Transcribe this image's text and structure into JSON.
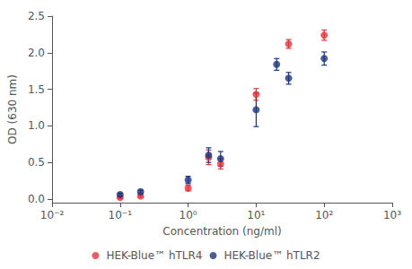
{
  "chart_data": {
    "type": "scatter",
    "xlabel": "Concentration (ng/ml)",
    "ylabel": "OD (630 nm)",
    "log": "x",
    "xlim": [
      0.01,
      1000
    ],
    "xticks": [
      {
        "value": 0.01,
        "label": "10⁻²"
      },
      {
        "value": 0.1,
        "label": "10⁻¹"
      },
      {
        "value": 1,
        "label": "10⁰"
      },
      {
        "value": 10,
        "label": "10¹"
      },
      {
        "value": 100,
        "label": "10²"
      },
      {
        "value": 1000,
        "label": "10³"
      }
    ],
    "ylim": [
      -0.05,
      2.5
    ],
    "yticks": [
      {
        "value": 0,
        "label": "0.0"
      },
      0.5,
      {
        "value": 1,
        "label": "1.0"
      },
      1.5,
      {
        "value": 2,
        "label": "2.0"
      },
      2.5
    ],
    "grid": false,
    "legend": "bottom",
    "marker": "circle",
    "series": [
      {
        "name": "HEK-Blue™ hTLR4",
        "color": "#E8323C",
        "x": [
          0.1,
          0.2,
          1.0,
          2.0,
          3.0,
          10.0,
          30.0,
          100.0
        ],
        "values": [
          0.02,
          0.04,
          0.15,
          0.57,
          0.48,
          1.43,
          2.12,
          2.24
        ],
        "yerr": [
          0.015,
          0.015,
          0.04,
          0.1,
          0.07,
          0.08,
          0.06,
          0.07
        ]
      },
      {
        "name": "HEK-Blue™ hTLR2",
        "color": "#1A3480",
        "x": [
          0.1,
          0.2,
          1.0,
          2.0,
          3.0,
          10.0,
          20.0,
          30.0,
          100.0
        ],
        "values": [
          0.06,
          0.1,
          0.26,
          0.6,
          0.55,
          1.22,
          1.84,
          1.65,
          1.92
        ],
        "yerr": [
          0.02,
          0.02,
          0.05,
          0.1,
          0.1,
          0.23,
          0.08,
          0.08,
          0.09
        ]
      }
    ]
  }
}
